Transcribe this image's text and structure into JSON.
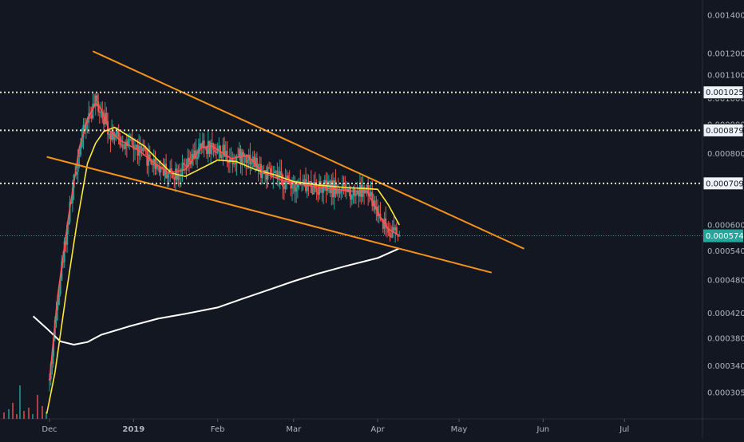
{
  "chart_data": {
    "type": "line",
    "title": "",
    "xlabel": "",
    "ylabel": "",
    "log_scale": true,
    "ylim": [
      0.00028,
      0.0016
    ],
    "xlim": [
      "2018-11-25",
      "2019-07-25"
    ],
    "x_ticks": [
      {
        "date": "2018-12-01",
        "label": "Dec"
      },
      {
        "date": "2019-01-01",
        "label": "2019"
      },
      {
        "date": "2019-02-01",
        "label": "Feb"
      },
      {
        "date": "2019-03-01",
        "label": "Mar"
      },
      {
        "date": "2019-04-01",
        "label": "Apr"
      },
      {
        "date": "2019-05-01",
        "label": "May"
      },
      {
        "date": "2019-06-01",
        "label": "Jun"
      },
      {
        "date": "2019-07-01",
        "label": "Jul"
      }
    ],
    "y_ticks": [
      "0.0014000",
      "0.0012000",
      "0.0011000",
      "0.0010000",
      "0.0009000",
      "0.0008000",
      "0.0006000",
      "0.0005400",
      "0.0004800",
      "0.0004200",
      "0.0003800",
      "0.0003400",
      "0.0003050"
    ],
    "price_levels": [
      {
        "value": 0.0010251,
        "label": "0.0010251"
      },
      {
        "value": 0.0008793,
        "label": "0.0008793"
      },
      {
        "value": 0.0007098,
        "label": "0.0007098"
      }
    ],
    "last_price": {
      "value": 0.0005744,
      "label": "0.0005744"
    },
    "trendlines": [
      {
        "name": "upper-resistance",
        "from": [
          "2018-12-17",
          0.00121
        ],
        "to": [
          "2019-05-25",
          0.000545
        ],
        "color": "#f7931a"
      },
      {
        "name": "lower-support",
        "from": [
          "2018-11-30",
          0.00079
        ],
        "to": [
          "2019-05-13",
          0.000495
        ],
        "color": "#f7931a"
      }
    ],
    "series": [
      {
        "color": "#ffffff",
        "values": [
          [
            "2018-11-25",
            0.000415
          ],
          [
            "2018-11-30",
            0.000395
          ],
          [
            "2018-12-05",
            0.000375
          ],
          [
            "2018-12-10",
            0.00037
          ],
          [
            "2018-12-15",
            0.000374
          ],
          [
            "2018-12-20",
            0.000385
          ],
          [
            "2018-12-30",
            0.000398
          ],
          [
            "2019-01-10",
            0.000411
          ],
          [
            "2019-01-20",
            0.000419
          ],
          [
            "2019-02-01",
            0.00043
          ],
          [
            "2019-02-10",
            0.000445
          ],
          [
            "2019-02-20",
            0.000462
          ],
          [
            "2019-03-01",
            0.000478
          ],
          [
            "2019-03-10",
            0.000493
          ],
          [
            "2019-03-20",
            0.000508
          ],
          [
            "2019-04-01",
            0.000525
          ],
          [
            "2019-04-09",
            0.000546
          ]
        ]
      },
      {
        "color": "#ffe838",
        "values": [
          [
            "2018-11-30",
            0.00028
          ],
          [
            "2018-12-03",
            0.00033
          ],
          [
            "2018-12-07",
            0.00045
          ],
          [
            "2018-12-11",
            0.0006
          ],
          [
            "2018-12-15",
            0.00077
          ],
          [
            "2018-12-18",
            0.000835
          ],
          [
            "2018-12-21",
            0.000875
          ],
          [
            "2018-12-25",
            0.00089
          ],
          [
            "2018-12-30",
            0.00086
          ],
          [
            "2019-01-05",
            0.000825
          ],
          [
            "2019-01-10",
            0.00078
          ],
          [
            "2019-01-15",
            0.00074
          ],
          [
            "2019-01-20",
            0.00073
          ],
          [
            "2019-01-25",
            0.00075
          ],
          [
            "2019-02-01",
            0.00078
          ],
          [
            "2019-02-08",
            0.000775
          ],
          [
            "2019-02-15",
            0.00075
          ],
          [
            "2019-02-22",
            0.000735
          ],
          [
            "2019-03-01",
            0.000715
          ],
          [
            "2019-03-10",
            0.000705
          ],
          [
            "2019-03-20",
            0.000698
          ],
          [
            "2019-03-28",
            0.000695
          ],
          [
            "2019-04-01",
            0.000693
          ],
          [
            "2019-04-05",
            0.00065
          ],
          [
            "2019-04-09",
            0.0006
          ]
        ]
      },
      {
        "color": "#ff5252",
        "values": [
          [
            "2018-12-01",
            0.00032
          ],
          [
            "2018-12-04",
            0.00045
          ],
          [
            "2018-12-08",
            0.00062
          ],
          [
            "2018-12-12",
            0.00082
          ],
          [
            "2018-12-15",
            0.00092
          ],
          [
            "2018-12-18",
            0.00098
          ],
          [
            "2018-12-20",
            0.00096
          ],
          [
            "2018-12-23",
            0.00088
          ],
          [
            "2018-12-27",
            0.000845
          ],
          [
            "2019-01-03",
            0.00081
          ],
          [
            "2019-01-08",
            0.000775
          ],
          [
            "2019-01-14",
            0.00074
          ],
          [
            "2019-01-20",
            0.00075
          ],
          [
            "2019-01-26",
            0.00082
          ],
          [
            "2019-01-30",
            0.000825
          ],
          [
            "2019-02-06",
            0.000785
          ],
          [
            "2019-02-12",
            0.000795
          ],
          [
            "2019-02-18",
            0.00074
          ],
          [
            "2019-02-25",
            0.000718
          ],
          [
            "2019-03-05",
            0.000705
          ],
          [
            "2019-03-15",
            0.000695
          ],
          [
            "2019-03-22",
            0.000688
          ],
          [
            "2019-03-28",
            0.000688
          ],
          [
            "2019-04-02",
            0.00062
          ],
          [
            "2019-04-05",
            0.00059
          ],
          [
            "2019-04-09",
            0.000575
          ]
        ]
      }
    ]
  },
  "colors": {
    "background": "#131722",
    "axis_text": "#b2b5be",
    "level_line": "#e8e4c9",
    "last_price_line": "#26a69a",
    "candle_up": "#26a69a",
    "candle_down": "#ef5350"
  }
}
